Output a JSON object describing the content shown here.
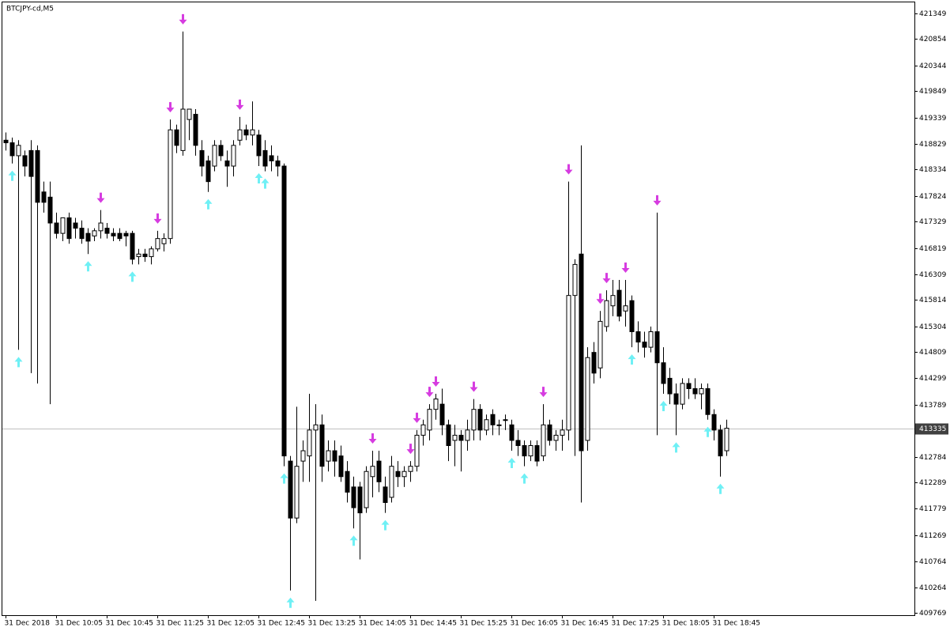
{
  "chart_data": {
    "type": "candlestick",
    "title": "BTCJPY-cd,M5",
    "categories": [
      "31 Dec 2018",
      null,
      null,
      null,
      null,
      null,
      null,
      null,
      "31 Dec 10:05",
      null,
      null,
      null,
      null,
      null,
      null,
      null,
      "31 Dec 10:45",
      null,
      null,
      null,
      null,
      null,
      null,
      null,
      "31 Dec 11:25",
      null,
      null,
      null,
      null,
      null,
      null,
      null,
      "31 Dec 12:05",
      null,
      null,
      null,
      null,
      null,
      null,
      null,
      "31 Dec 12:45",
      null,
      null,
      null,
      null,
      null,
      null,
      null,
      "31 Dec 13:25",
      null,
      null,
      null,
      null,
      null,
      null,
      null,
      "31 Dec 14:05",
      null,
      null,
      null,
      null,
      null,
      null,
      null,
      "31 Dec 14:45",
      null,
      null,
      null,
      null,
      null,
      null,
      null,
      "31 Dec 15:25",
      null,
      null,
      null,
      null,
      null,
      null,
      null,
      "31 Dec 16:05",
      null,
      null,
      null,
      null,
      null,
      null,
      null,
      "31 Dec 16:45",
      null,
      null,
      null,
      null,
      null,
      null,
      null,
      "31 Dec 17:25",
      null,
      null,
      null,
      null,
      null,
      null,
      null,
      "31 Dec 18:05",
      null,
      null,
      null,
      null,
      null,
      null,
      null,
      "31 Dec 18:45",
      null,
      null
    ],
    "open": [
      418900,
      418850,
      418600,
      418600,
      418700,
      418700,
      417900,
      417800,
      417300,
      417100,
      417400,
      417300,
      417200,
      417100,
      417050,
      417150,
      417200,
      417100,
      417100,
      417100,
      417100,
      416650,
      416700,
      416650,
      416800,
      416900,
      417000,
      419100,
      418700,
      419300,
      419400,
      418700,
      418500,
      418400,
      418800,
      418500,
      418400,
      418900,
      419100,
      419000,
      419000,
      418700,
      418600,
      418500,
      418400,
      412700,
      411600,
      412700,
      412800,
      413300,
      413400,
      412700,
      412900,
      412800,
      412500,
      412200,
      412200,
      411800,
      412400,
      412700,
      412200,
      412000,
      412500,
      412400,
      412500,
      412600,
      413200,
      413300,
      413700,
      413800,
      413400,
      413100,
      413200,
      413100,
      413300,
      413700,
      413300,
      413600,
      413400,
      413500,
      413400,
      413100,
      413000,
      412800,
      413000,
      412800,
      413400,
      413100,
      413200,
      413300,
      415900,
      416700,
      413100,
      414800,
      414500,
      415300,
      415700,
      416000,
      415600,
      415800,
      415200,
      415000,
      414900,
      415200,
      414600,
      414300,
      414000,
      413800,
      414200,
      414100,
      414000,
      414100,
      413600,
      413300,
      412900
    ],
    "high": [
      419050,
      418950,
      418900,
      418700,
      418900,
      418800,
      418100,
      418100,
      417500,
      417400,
      417500,
      417400,
      417350,
      417200,
      417200,
      417550,
      417300,
      417200,
      417200,
      417150,
      417150,
      416800,
      416800,
      416850,
      417150,
      417100,
      419300,
      419200,
      421000,
      419500,
      419500,
      418900,
      418600,
      418900,
      418900,
      418700,
      418900,
      419350,
      419200,
      419650,
      419100,
      418900,
      418800,
      418600,
      418450,
      412800,
      413750,
      413100,
      414000,
      413800,
      413600,
      413100,
      413100,
      413000,
      412700,
      412400,
      412300,
      412600,
      412900,
      412900,
      412400,
      412800,
      412700,
      412600,
      412700,
      413300,
      413500,
      413800,
      414000,
      414100,
      413500,
      413400,
      413300,
      413500,
      413900,
      413800,
      413600,
      413700,
      413500,
      413600,
      413500,
      413300,
      413100,
      413100,
      413100,
      413800,
      413500,
      413300,
      413500,
      418100,
      416600,
      418800,
      414900,
      415000,
      415600,
      416000,
      416200,
      416200,
      416200,
      415900,
      415400,
      415200,
      415300,
      417500,
      414900,
      414500,
      414200,
      414300,
      414300,
      414300,
      414200,
      414200,
      413700,
      413400,
      413500
    ],
    "low": [
      418700,
      418450,
      414850,
      418200,
      414400,
      414200,
      417500,
      413800,
      417000,
      416950,
      416900,
      417000,
      416900,
      416700,
      416950,
      417000,
      417000,
      416950,
      416950,
      416850,
      416500,
      416500,
      416550,
      416500,
      416750,
      416750,
      416900,
      418650,
      418600,
      418900,
      418600,
      418200,
      417900,
      418300,
      418500,
      418000,
      418200,
      418800,
      418900,
      418800,
      418400,
      418300,
      418300,
      418200,
      412600,
      410200,
      411500,
      412300,
      412300,
      410000,
      412300,
      412500,
      412400,
      412300,
      411900,
      411400,
      410800,
      411700,
      412000,
      412100,
      411700,
      411900,
      412200,
      412200,
      412300,
      412500,
      413000,
      413100,
      413500,
      413200,
      412700,
      412600,
      412500,
      412900,
      413100,
      413100,
      413200,
      413200,
      413200,
      413300,
      412900,
      412800,
      412600,
      412700,
      412600,
      412700,
      413000,
      412900,
      412900,
      413100,
      412800,
      411900,
      412900,
      414200,
      414300,
      415200,
      415500,
      415400,
      415300,
      414900,
      414800,
      414700,
      414800,
      413200,
      414000,
      413800,
      413200,
      413700,
      413900,
      413900,
      413700,
      413500,
      413100,
      412400,
      412800
    ],
    "close": [
      418850,
      418600,
      418800,
      418400,
      418200,
      417700,
      417700,
      417300,
      417100,
      417400,
      417000,
      417200,
      417000,
      416950,
      417150,
      417300,
      417100,
      417050,
      417000,
      417050,
      416600,
      416700,
      416650,
      416800,
      417000,
      417000,
      419100,
      418800,
      419500,
      419500,
      418800,
      418400,
      418100,
      418800,
      418600,
      418400,
      418800,
      419100,
      419000,
      419100,
      418600,
      418400,
      418500,
      418400,
      412800,
      411600,
      412600,
      412900,
      413300,
      413400,
      412600,
      412900,
      412700,
      412400,
      412100,
      411800,
      411700,
      412500,
      412600,
      412300,
      411900,
      412600,
      412400,
      412500,
      412600,
      413200,
      413400,
      413700,
      413900,
      413400,
      413000,
      413200,
      413100,
      413300,
      413700,
      413300,
      413500,
      413400,
      413400,
      413500,
      413100,
      413000,
      412800,
      413000,
      412700,
      413400,
      413100,
      413200,
      413300,
      415900,
      416500,
      412900,
      414700,
      414400,
      415400,
      415800,
      415900,
      415500,
      415700,
      415200,
      415000,
      414900,
      415200,
      414600,
      414200,
      414000,
      413800,
      414200,
      414100,
      414000,
      414100,
      413600,
      413300,
      412800,
      413335
    ],
    "ylim": [
      409723,
      421578
    ],
    "yticks": [
      409769,
      410264,
      410764,
      411269,
      411779,
      412289,
      412784,
      413789,
      414299,
      414809,
      415304,
      415814,
      416309,
      416819,
      417329,
      417824,
      418334,
      418829,
      419339,
      419849,
      420344,
      420854,
      421349
    ],
    "current_price": 413335,
    "sell_signals": [
      15,
      24,
      26,
      28,
      37,
      58,
      64,
      65,
      67,
      68,
      74,
      85,
      89,
      94,
      95,
      98,
      103
    ],
    "buy_signals": [
      1,
      2,
      13,
      20,
      32,
      40,
      41,
      44,
      45,
      55,
      60,
      80,
      82,
      99,
      104,
      106,
      111,
      113
    ],
    "up_color": "#ffffff",
    "down_color": "#000000",
    "sell_color": "#d63ce0",
    "buy_color": "#6ff0f5"
  }
}
